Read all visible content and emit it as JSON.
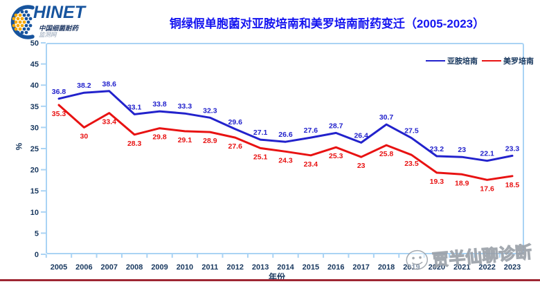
{
  "logo": {
    "brand": "HINET",
    "line1": "中国细菌耐药",
    "line2": "监测网"
  },
  "title": "铜绿假单胞菌对亚胺培南和美罗培南耐药变迁（2005-2023）",
  "chart_data": {
    "type": "line",
    "categories": [
      "2005",
      "2006",
      "2007",
      "2008",
      "2009",
      "2010",
      "2011",
      "2012",
      "2013",
      "2014",
      "2015",
      "2016",
      "2017",
      "2018",
      "2019",
      "2020",
      "2021",
      "2022",
      "2023"
    ],
    "series": [
      {
        "name": "亚胺培南",
        "color": "#2222CC",
        "values": [
          36.8,
          38.2,
          38.6,
          33.1,
          33.8,
          33.3,
          32.3,
          29.6,
          27.1,
          26.6,
          27.6,
          28.7,
          26.4,
          30.7,
          27.5,
          23.2,
          23,
          22.1,
          23.3
        ]
      },
      {
        "name": "美罗培南",
        "color": "#E81212",
        "values": [
          35.3,
          30,
          33.4,
          28.3,
          29.8,
          29.1,
          28.9,
          27.6,
          25.1,
          24.3,
          23.4,
          25.3,
          23,
          25.8,
          23.5,
          19.3,
          18.9,
          17.6,
          18.5
        ]
      }
    ],
    "title": "铜绿假单胞菌对亚胺培南和美罗培南耐药变迁（2005-2023）",
    "xlabel": "年份",
    "ylabel": "%",
    "ylim": [
      0,
      50
    ],
    "ytick_step": 5,
    "grid": false,
    "legend_position": "top-right",
    "data_labels": true
  },
  "watermark": {
    "text": "贾半仙聊诊断"
  },
  "colors": {
    "title": "#1414F0",
    "axis_text": "#17375E",
    "plot_border": "#A9D3F4",
    "footer_rule": "#9E2633",
    "logo_blue": "#17549E",
    "logo_orange": "#F7A800"
  }
}
